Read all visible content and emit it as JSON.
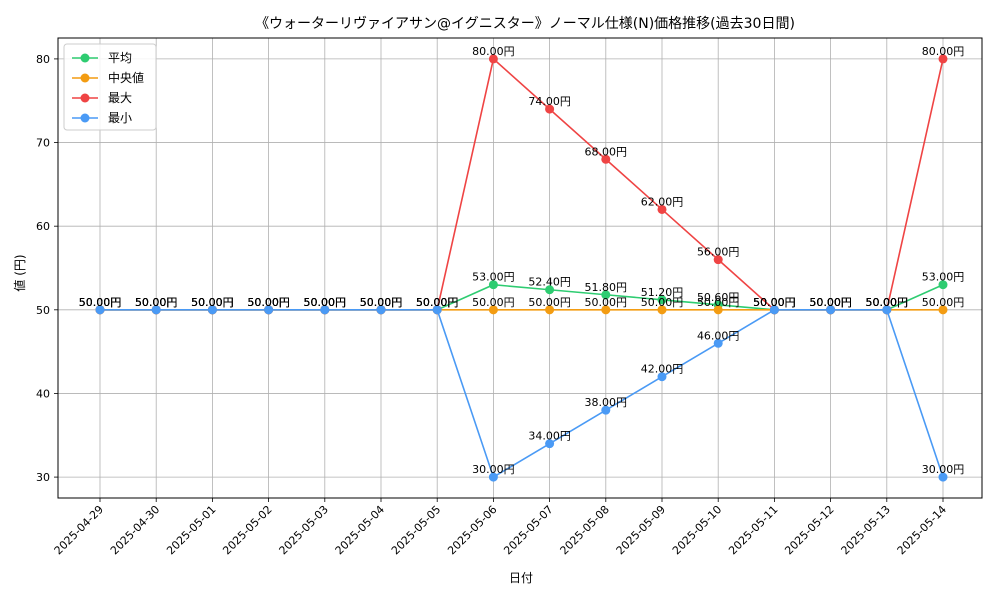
{
  "chart_data": {
    "type": "line",
    "title": "《ウォーターリヴァイアサン@イグニスター》ノーマル仕様(N)価格推移(過去30日間)",
    "xlabel": "日付",
    "ylabel": "値 (円)",
    "ylim": [
      27.5,
      82.5
    ],
    "yticks": [
      30,
      40,
      50,
      60,
      70,
      80
    ],
    "grid": true,
    "legend_position": "top-left",
    "value_suffix": "円",
    "x": [
      "2025-04-29",
      "2025-04-30",
      "2025-05-01",
      "2025-05-02",
      "2025-05-03",
      "2025-05-04",
      "2025-05-05",
      "2025-05-06",
      "2025-05-07",
      "2025-05-08",
      "2025-05-09",
      "2025-05-10",
      "2025-05-11",
      "2025-05-12",
      "2025-05-13",
      "2025-05-14"
    ],
    "series": [
      {
        "name": "平均",
        "color": "#2ecc71",
        "values": [
          50,
          50,
          50,
          50,
          50,
          50,
          50,
          53,
          52.4,
          51.8,
          51.2,
          50.6,
          50,
          50,
          50,
          53
        ]
      },
      {
        "name": "中央値",
        "color": "#f39c12",
        "values": [
          50,
          50,
          50,
          50,
          50,
          50,
          50,
          50,
          50,
          50,
          50,
          50,
          50,
          50,
          50,
          50
        ]
      },
      {
        "name": "最大",
        "color": "#ef4444",
        "values": [
          50,
          50,
          50,
          50,
          50,
          50,
          50,
          80,
          74,
          68,
          62,
          56,
          50,
          50,
          50,
          80
        ]
      },
      {
        "name": "最小",
        "color": "#4a9af5",
        "values": [
          50,
          50,
          50,
          50,
          50,
          50,
          50,
          30,
          34,
          38,
          42,
          46,
          50,
          50,
          50,
          30
        ]
      }
    ]
  }
}
